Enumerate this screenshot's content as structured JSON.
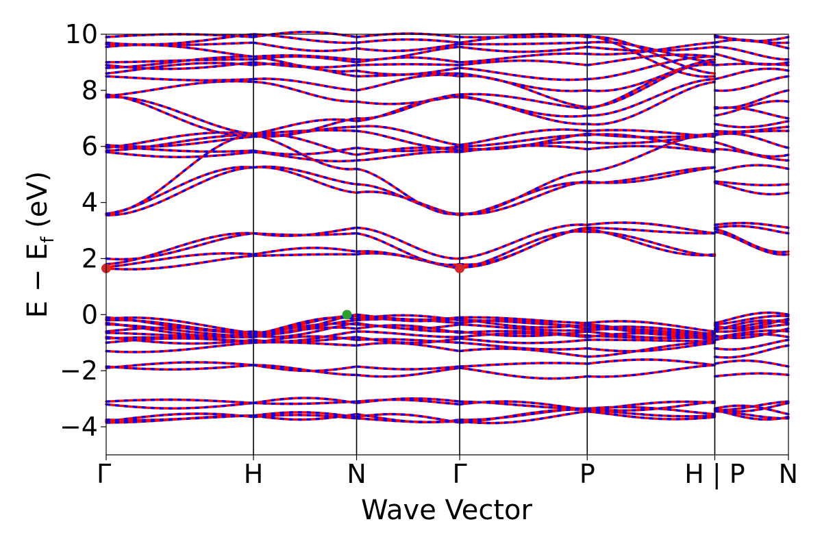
{
  "chart_data": {
    "type": "line",
    "title": "",
    "xlabel": "Wave Vector",
    "ylabel": "E − E_f (eV)",
    "ylabel_parts": {
      "main": "E − E",
      "sub": "f",
      "unit": " (eV)"
    },
    "ylim": [
      -5,
      10
    ],
    "yticks": [
      -4,
      -2,
      0,
      2,
      4,
      6,
      8,
      10
    ],
    "ytick_labels": [
      "−4",
      "−2",
      "0",
      "2",
      "4",
      "6",
      "8",
      "10"
    ],
    "kpoint_labels": [
      "Γ",
      "H",
      "N",
      "Γ",
      "P",
      "H | P",
      "N"
    ],
    "kpoint_x": [
      0.0,
      1.0,
      1.7,
      2.4,
      3.266,
      4.132,
      4.632
    ],
    "path_break_at_index": 5,
    "spin_up_color": "#ff0000",
    "spin_down_color": "#0000ff",
    "band_style": "red and blue dashed overlay (spin up / spin down coincide)",
    "cbm": {
      "x": [
        0.0,
        2.4
      ],
      "y": 1.65,
      "color": "#d62728",
      "label": ""
    },
    "vbm": {
      "x": 1.635,
      "y": 0.0,
      "color": "#2ca02c",
      "label": ""
    },
    "segments": [
      {
        "from": "Γ",
        "to": "H",
        "bands": [
          [
            -3.85,
            -3.6
          ],
          [
            -3.8,
            -3.65
          ],
          [
            -3.75,
            -3.6
          ],
          [
            -3.2,
            -3.15
          ],
          [
            -3.1,
            -3.15
          ],
          [
            -1.9,
            -1.8
          ],
          [
            -1.85,
            -1.8
          ],
          [
            -1.3,
            -1.0
          ],
          [
            -1.0,
            -1.0
          ],
          [
            -0.85,
            -0.95
          ],
          [
            -0.8,
            -0.9
          ],
          [
            -0.65,
            -0.8
          ],
          [
            -0.6,
            -0.7
          ],
          [
            -0.35,
            -0.75
          ],
          [
            -0.3,
            -0.7
          ],
          [
            -0.2,
            -0.7
          ],
          [
            -0.15,
            -0.65
          ],
          [
            -0.1,
            -0.6
          ],
          [
            1.65,
            2.1
          ],
          [
            1.7,
            2.15
          ],
          [
            1.8,
            2.9
          ],
          [
            2.0,
            2.9
          ],
          [
            3.55,
            5.25
          ],
          [
            3.6,
            5.25
          ],
          [
            3.6,
            6.4
          ],
          [
            5.8,
            5.8
          ],
          [
            5.85,
            6.4
          ],
          [
            5.95,
            6.45
          ],
          [
            6.0,
            5.85
          ],
          [
            6.05,
            6.35
          ],
          [
            7.75,
            6.45
          ],
          [
            7.8,
            8.3
          ],
          [
            7.85,
            6.4
          ],
          [
            8.5,
            8.4
          ],
          [
            8.6,
            8.9
          ],
          [
            8.8,
            9.2
          ],
          [
            8.9,
            9.0
          ],
          [
            9.0,
            9.1
          ],
          [
            9.55,
            9.2
          ],
          [
            9.65,
            9.7
          ],
          [
            9.7,
            10.0
          ],
          [
            9.9,
            9.9
          ]
        ]
      },
      {
        "from": "H",
        "to": "N",
        "bands": [
          [
            -3.6,
            -3.65
          ],
          [
            -3.65,
            -3.7
          ],
          [
            -3.6,
            -3.55
          ],
          [
            -3.15,
            -3.1
          ],
          [
            -3.15,
            -3.15
          ],
          [
            -1.8,
            -2.15
          ],
          [
            -1.8,
            -1.85
          ],
          [
            -1.0,
            -1.1
          ],
          [
            -1.0,
            -0.9
          ],
          [
            -0.95,
            -0.8
          ],
          [
            -0.9,
            -0.6
          ],
          [
            -0.8,
            -0.5
          ],
          [
            -0.7,
            -0.35
          ],
          [
            -0.75,
            -0.3
          ],
          [
            -0.7,
            -0.2
          ],
          [
            -0.7,
            -0.15
          ],
          [
            -0.65,
            -0.05
          ],
          [
            -0.6,
            0.0
          ],
          [
            2.1,
            2.15
          ],
          [
            2.15,
            2.25
          ],
          [
            2.9,
            2.9
          ],
          [
            2.9,
            3.1
          ],
          [
            5.25,
            4.35
          ],
          [
            5.25,
            4.65
          ],
          [
            6.4,
            5.2
          ],
          [
            5.8,
            5.5
          ],
          [
            6.4,
            5.7
          ],
          [
            6.45,
            6.55
          ],
          [
            5.85,
            5.95
          ],
          [
            6.35,
            6.7
          ],
          [
            6.45,
            6.9
          ],
          [
            8.3,
            7.6
          ],
          [
            6.4,
            7.0
          ],
          [
            8.4,
            8.0
          ],
          [
            8.9,
            8.5
          ],
          [
            9.2,
            8.7
          ],
          [
            9.0,
            8.9
          ],
          [
            9.1,
            9.0
          ],
          [
            9.2,
            9.1
          ],
          [
            9.7,
            9.5
          ],
          [
            10.0,
            9.7
          ],
          [
            9.9,
            9.9
          ]
        ]
      },
      {
        "from": "N",
        "to": "Γ",
        "bands": [
          [
            -3.65,
            -3.85
          ],
          [
            -3.7,
            -3.8
          ],
          [
            -3.55,
            -3.75
          ],
          [
            -3.1,
            -3.2
          ],
          [
            -3.15,
            -3.1
          ],
          [
            -2.15,
            -1.9
          ],
          [
            -1.85,
            -1.85
          ],
          [
            -1.1,
            -1.3
          ],
          [
            -0.9,
            -1.0
          ],
          [
            -0.8,
            -0.85
          ],
          [
            -0.6,
            -0.8
          ],
          [
            -0.5,
            -0.65
          ],
          [
            -0.35,
            -0.6
          ],
          [
            -0.3,
            -0.35
          ],
          [
            -0.2,
            -0.3
          ],
          [
            -0.15,
            -0.2
          ],
          [
            -0.05,
            -0.15
          ],
          [
            0.0,
            -0.1
          ],
          [
            2.15,
            1.65
          ],
          [
            2.25,
            1.7
          ],
          [
            2.9,
            1.8
          ],
          [
            3.1,
            2.0
          ],
          [
            4.35,
            3.55
          ],
          [
            4.65,
            3.6
          ],
          [
            5.2,
            3.6
          ],
          [
            5.5,
            5.8
          ],
          [
            5.7,
            5.85
          ],
          [
            6.55,
            5.95
          ],
          [
            5.95,
            6.0
          ],
          [
            6.7,
            6.05
          ],
          [
            6.9,
            7.75
          ],
          [
            7.6,
            7.8
          ],
          [
            7.0,
            7.85
          ],
          [
            8.0,
            8.5
          ],
          [
            8.5,
            8.6
          ],
          [
            8.7,
            8.8
          ],
          [
            8.9,
            8.9
          ],
          [
            9.0,
            9.0
          ],
          [
            9.1,
            9.55
          ],
          [
            9.5,
            9.65
          ],
          [
            9.7,
            9.7
          ],
          [
            9.9,
            9.9
          ]
        ]
      },
      {
        "from": "Γ",
        "to": "P",
        "bands": [
          [
            -3.85,
            -3.4
          ],
          [
            -3.8,
            -3.45
          ],
          [
            -3.75,
            -3.35
          ],
          [
            -3.2,
            -3.4
          ],
          [
            -3.1,
            -3.35
          ],
          [
            -1.9,
            -2.2
          ],
          [
            -1.85,
            -1.75
          ],
          [
            -1.3,
            -1.5
          ],
          [
            -1.0,
            -1.2
          ],
          [
            -0.85,
            -0.9
          ],
          [
            -0.8,
            -0.8
          ],
          [
            -0.65,
            -0.75
          ],
          [
            -0.6,
            -0.6
          ],
          [
            -0.35,
            -0.55
          ],
          [
            -0.3,
            -0.5
          ],
          [
            -0.2,
            -0.4
          ],
          [
            -0.15,
            -0.35
          ],
          [
            -0.1,
            -0.3
          ],
          [
            1.65,
            2.95
          ],
          [
            1.7,
            3.05
          ],
          [
            1.8,
            3.1
          ],
          [
            2.0,
            3.2
          ],
          [
            3.55,
            4.7
          ],
          [
            3.6,
            4.75
          ],
          [
            3.6,
            5.1
          ],
          [
            5.8,
            5.9
          ],
          [
            5.85,
            6.15
          ],
          [
            5.95,
            6.45
          ],
          [
            6.0,
            6.4
          ],
          [
            6.05,
            6.55
          ],
          [
            7.75,
            6.8
          ],
          [
            7.8,
            7.1
          ],
          [
            7.85,
            7.35
          ],
          [
            8.5,
            7.4
          ],
          [
            8.6,
            8.0
          ],
          [
            8.8,
            8.4
          ],
          [
            8.9,
            8.9
          ],
          [
            9.0,
            9.3
          ],
          [
            9.55,
            9.55
          ],
          [
            9.65,
            9.7
          ],
          [
            9.7,
            9.9
          ],
          [
            9.9,
            9.95
          ]
        ]
      },
      {
        "from": "P",
        "to": "H",
        "bands": [
          [
            -3.4,
            -3.6
          ],
          [
            -3.45,
            -3.65
          ],
          [
            -3.35,
            -3.55
          ],
          [
            -3.4,
            -3.15
          ],
          [
            -3.35,
            -3.1
          ],
          [
            -2.2,
            -1.8
          ],
          [
            -1.75,
            -1.8
          ],
          [
            -1.5,
            -1.0
          ],
          [
            -1.2,
            -1.0
          ],
          [
            -0.9,
            -0.95
          ],
          [
            -0.8,
            -0.9
          ],
          [
            -0.75,
            -0.8
          ],
          [
            -0.6,
            -0.7
          ],
          [
            -0.55,
            -0.75
          ],
          [
            -0.5,
            -0.7
          ],
          [
            -0.4,
            -0.7
          ],
          [
            -0.35,
            -0.65
          ],
          [
            -0.3,
            -0.6
          ],
          [
            2.95,
            2.1
          ],
          [
            3.05,
            2.15
          ],
          [
            3.1,
            2.9
          ],
          [
            3.2,
            2.9
          ],
          [
            4.7,
            5.25
          ],
          [
            4.75,
            5.25
          ],
          [
            5.1,
            6.4
          ],
          [
            5.9,
            5.8
          ],
          [
            6.15,
            6.4
          ],
          [
            6.45,
            6.45
          ],
          [
            6.4,
            5.85
          ],
          [
            6.55,
            6.35
          ],
          [
            6.8,
            8.3
          ],
          [
            7.1,
            8.4
          ],
          [
            7.35,
            8.9
          ],
          [
            7.4,
            9.0
          ],
          [
            8.0,
            9.1
          ],
          [
            8.4,
            9.2
          ],
          [
            8.9,
            9.2
          ],
          [
            9.3,
            9.7
          ],
          [
            9.55,
            9.55
          ],
          [
            9.7,
            9.0
          ],
          [
            9.9,
            8.6
          ],
          [
            9.95,
            8.5
          ]
        ]
      },
      {
        "from": "P",
        "to": "N",
        "bands": [
          [
            -3.4,
            -3.65
          ],
          [
            -3.45,
            -3.7
          ],
          [
            -3.35,
            -3.55
          ],
          [
            -3.4,
            -3.1
          ],
          [
            -3.35,
            -3.15
          ],
          [
            -2.2,
            -2.15
          ],
          [
            -1.75,
            -1.85
          ],
          [
            -1.5,
            -1.1
          ],
          [
            -1.2,
            -0.9
          ],
          [
            -0.9,
            -0.8
          ],
          [
            -0.8,
            -0.6
          ],
          [
            -0.75,
            -0.5
          ],
          [
            -0.6,
            -0.35
          ],
          [
            -0.55,
            -0.3
          ],
          [
            -0.5,
            -0.2
          ],
          [
            -0.4,
            -0.15
          ],
          [
            -0.35,
            -0.05
          ],
          [
            -0.3,
            0.0
          ],
          [
            2.95,
            2.15
          ],
          [
            3.05,
            2.25
          ],
          [
            3.1,
            2.9
          ],
          [
            3.2,
            3.1
          ],
          [
            4.7,
            4.35
          ],
          [
            4.75,
            4.65
          ],
          [
            5.1,
            5.2
          ],
          [
            5.9,
            5.5
          ],
          [
            6.15,
            5.7
          ],
          [
            6.45,
            6.55
          ],
          [
            6.4,
            5.95
          ],
          [
            6.55,
            6.7
          ],
          [
            6.8,
            6.9
          ],
          [
            7.1,
            7.6
          ],
          [
            7.35,
            7.0
          ],
          [
            7.4,
            8.0
          ],
          [
            8.0,
            8.5
          ],
          [
            8.4,
            8.7
          ],
          [
            8.9,
            8.9
          ],
          [
            9.3,
            9.0
          ],
          [
            9.55,
            9.1
          ],
          [
            9.7,
            9.5
          ],
          [
            9.9,
            9.7
          ],
          [
            9.95,
            9.9
          ]
        ]
      }
    ]
  }
}
